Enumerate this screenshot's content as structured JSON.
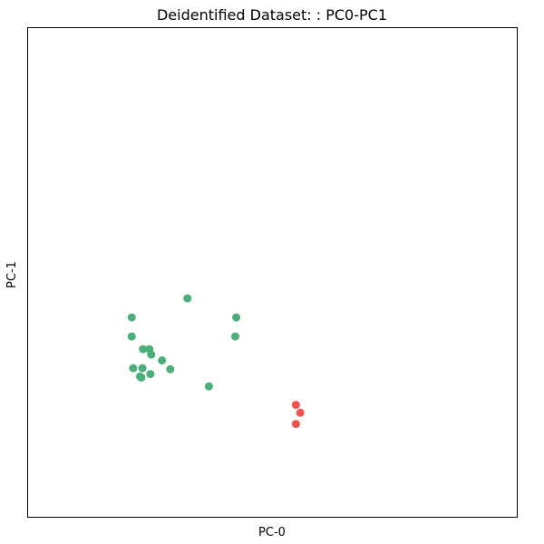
{
  "chart_data": {
    "type": "scatter",
    "title": "Deidentified Dataset: : PC0-PC1",
    "xlabel": "PC-0",
    "ylabel": "PC-1",
    "xlim": [
      0,
      100
    ],
    "ylim": [
      0,
      100
    ],
    "x_ticks_shown": false,
    "y_ticks_shown": false,
    "grid": false,
    "legend": "none",
    "series": [
      {
        "color": "#4caf7a",
        "points": [
          {
            "x": 32.6,
            "y": 44.7
          },
          {
            "x": 21.2,
            "y": 40.8
          },
          {
            "x": 42.6,
            "y": 40.8
          },
          {
            "x": 21.2,
            "y": 36.9
          },
          {
            "x": 42.4,
            "y": 36.9
          },
          {
            "x": 23.5,
            "y": 34.3
          },
          {
            "x": 24.8,
            "y": 34.3
          },
          {
            "x": 25.2,
            "y": 33.2
          },
          {
            "x": 27.4,
            "y": 32.0
          },
          {
            "x": 21.5,
            "y": 30.4
          },
          {
            "x": 23.4,
            "y": 30.4
          },
          {
            "x": 29.1,
            "y": 30.2
          },
          {
            "x": 25.0,
            "y": 29.2
          },
          {
            "x": 22.9,
            "y": 28.7
          },
          {
            "x": 23.2,
            "y": 28.5
          },
          {
            "x": 37.0,
            "y": 26.7
          }
        ]
      },
      {
        "color": "#ef5350",
        "points": [
          {
            "x": 54.8,
            "y": 22.9
          },
          {
            "x": 55.7,
            "y": 21.3
          },
          {
            "x": 54.8,
            "y": 19.0
          }
        ]
      }
    ]
  }
}
